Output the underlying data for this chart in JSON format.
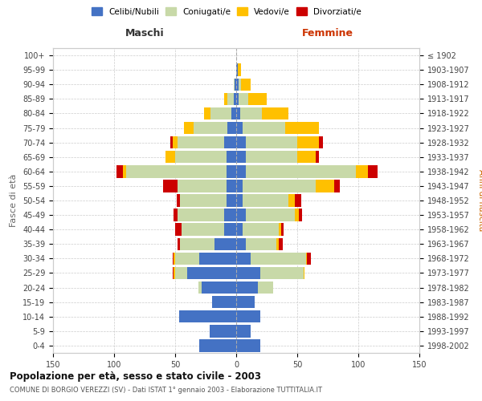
{
  "age_groups": [
    "0-4",
    "5-9",
    "10-14",
    "15-19",
    "20-24",
    "25-29",
    "30-34",
    "35-39",
    "40-44",
    "45-49",
    "50-54",
    "55-59",
    "60-64",
    "65-69",
    "70-74",
    "75-79",
    "80-84",
    "85-89",
    "90-94",
    "95-99",
    "100+"
  ],
  "birth_years": [
    "1998-2002",
    "1993-1997",
    "1988-1992",
    "1983-1987",
    "1978-1982",
    "1973-1977",
    "1968-1972",
    "1963-1967",
    "1958-1962",
    "1953-1957",
    "1948-1952",
    "1943-1947",
    "1938-1942",
    "1933-1937",
    "1928-1932",
    "1923-1927",
    "1918-1922",
    "1913-1917",
    "1908-1912",
    "1903-1907",
    "≤ 1902"
  ],
  "males": {
    "celibe": [
      30,
      22,
      47,
      20,
      28,
      40,
      30,
      18,
      10,
      10,
      8,
      8,
      8,
      8,
      10,
      7,
      4,
      2,
      1,
      0,
      0
    ],
    "coniugato": [
      0,
      0,
      0,
      0,
      3,
      10,
      20,
      28,
      35,
      38,
      38,
      40,
      82,
      42,
      38,
      28,
      17,
      5,
      1,
      0,
      0
    ],
    "vedovo": [
      0,
      0,
      0,
      0,
      0,
      1,
      1,
      0,
      0,
      0,
      0,
      0,
      3,
      8,
      4,
      8,
      5,
      3,
      0,
      0,
      0
    ],
    "divorziato": [
      0,
      0,
      0,
      0,
      0,
      1,
      1,
      2,
      5,
      3,
      3,
      12,
      5,
      0,
      2,
      0,
      0,
      0,
      0,
      0,
      0
    ]
  },
  "females": {
    "nubile": [
      20,
      12,
      20,
      15,
      18,
      20,
      12,
      8,
      5,
      8,
      5,
      5,
      8,
      8,
      8,
      5,
      3,
      2,
      2,
      1,
      0
    ],
    "coniugata": [
      0,
      0,
      0,
      0,
      12,
      35,
      45,
      25,
      30,
      40,
      38,
      60,
      90,
      42,
      42,
      35,
      18,
      8,
      2,
      0,
      0
    ],
    "vedova": [
      0,
      0,
      0,
      0,
      0,
      1,
      1,
      2,
      2,
      3,
      5,
      15,
      10,
      15,
      18,
      28,
      22,
      15,
      8,
      3,
      0
    ],
    "divorziata": [
      0,
      0,
      0,
      0,
      0,
      0,
      3,
      3,
      2,
      3,
      5,
      5,
      8,
      3,
      3,
      0,
      0,
      0,
      0,
      0,
      0
    ]
  },
  "colors": {
    "celibe_nubile": "#4472C4",
    "coniugato_a": "#c8d9a8",
    "vedovo_a": "#ffc000",
    "divorziato_a": "#cc0000"
  },
  "xlim": 150,
  "title": "Popolazione per età, sesso e stato civile - 2003",
  "subtitle": "COMUNE DI BORGIO VEREZZI (SV) - Dati ISTAT 1° gennaio 2003 - Elaborazione TUTTITALIA.IT",
  "ylabel_left": "Fasce di età",
  "ylabel_right": "Anni di nascita",
  "xlabel_left": "Maschi",
  "xlabel_right": "Femmine",
  "legend_labels": [
    "Celibi/Nubili",
    "Coniugati/e",
    "Vedovi/e",
    "Divorziati/e"
  ],
  "bg_color": "#ffffff",
  "grid_color": "#cccccc"
}
